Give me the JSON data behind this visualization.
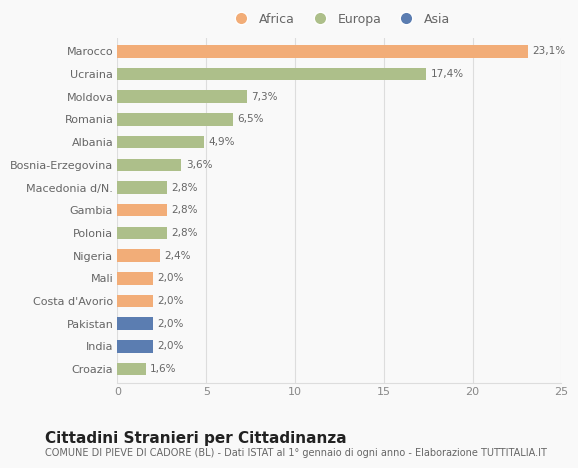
{
  "categories": [
    "Marocco",
    "Ucraina",
    "Moldova",
    "Romania",
    "Albania",
    "Bosnia-Erzegovina",
    "Macedonia d/N.",
    "Gambia",
    "Polonia",
    "Nigeria",
    "Mali",
    "Costa d'Avorio",
    "Pakistan",
    "India",
    "Croazia"
  ],
  "values": [
    23.1,
    17.4,
    7.3,
    6.5,
    4.9,
    3.6,
    2.8,
    2.8,
    2.8,
    2.4,
    2.0,
    2.0,
    2.0,
    2.0,
    1.6
  ],
  "labels": [
    "23,1%",
    "17,4%",
    "7,3%",
    "6,5%",
    "4,9%",
    "3,6%",
    "2,8%",
    "2,8%",
    "2,8%",
    "2,4%",
    "2,0%",
    "2,0%",
    "2,0%",
    "2,0%",
    "1,6%"
  ],
  "continent": [
    "Africa",
    "Europa",
    "Europa",
    "Europa",
    "Europa",
    "Europa",
    "Europa",
    "Africa",
    "Europa",
    "Africa",
    "Africa",
    "Africa",
    "Asia",
    "Asia",
    "Europa"
  ],
  "colors": {
    "Africa": "#F2AD78",
    "Europa": "#ADBF8A",
    "Asia": "#5B7DB1"
  },
  "legend_labels": [
    "Africa",
    "Europa",
    "Asia"
  ],
  "xlim": [
    0,
    25
  ],
  "xticks": [
    0,
    5,
    10,
    15,
    20,
    25
  ],
  "title": "Cittadini Stranieri per Cittadinanza",
  "subtitle": "COMUNE DI PIEVE DI CADORE (BL) - Dati ISTAT al 1° gennaio di ogni anno - Elaborazione TUTTITALIA.IT",
  "bg_color": "#f9f9f9",
  "grid_color": "#dddddd",
  "bar_height": 0.55,
  "label_fontsize": 7.5,
  "ytick_fontsize": 8.0,
  "xtick_fontsize": 8.0,
  "title_fontsize": 11,
  "subtitle_fontsize": 7.0,
  "legend_fontsize": 9.0
}
